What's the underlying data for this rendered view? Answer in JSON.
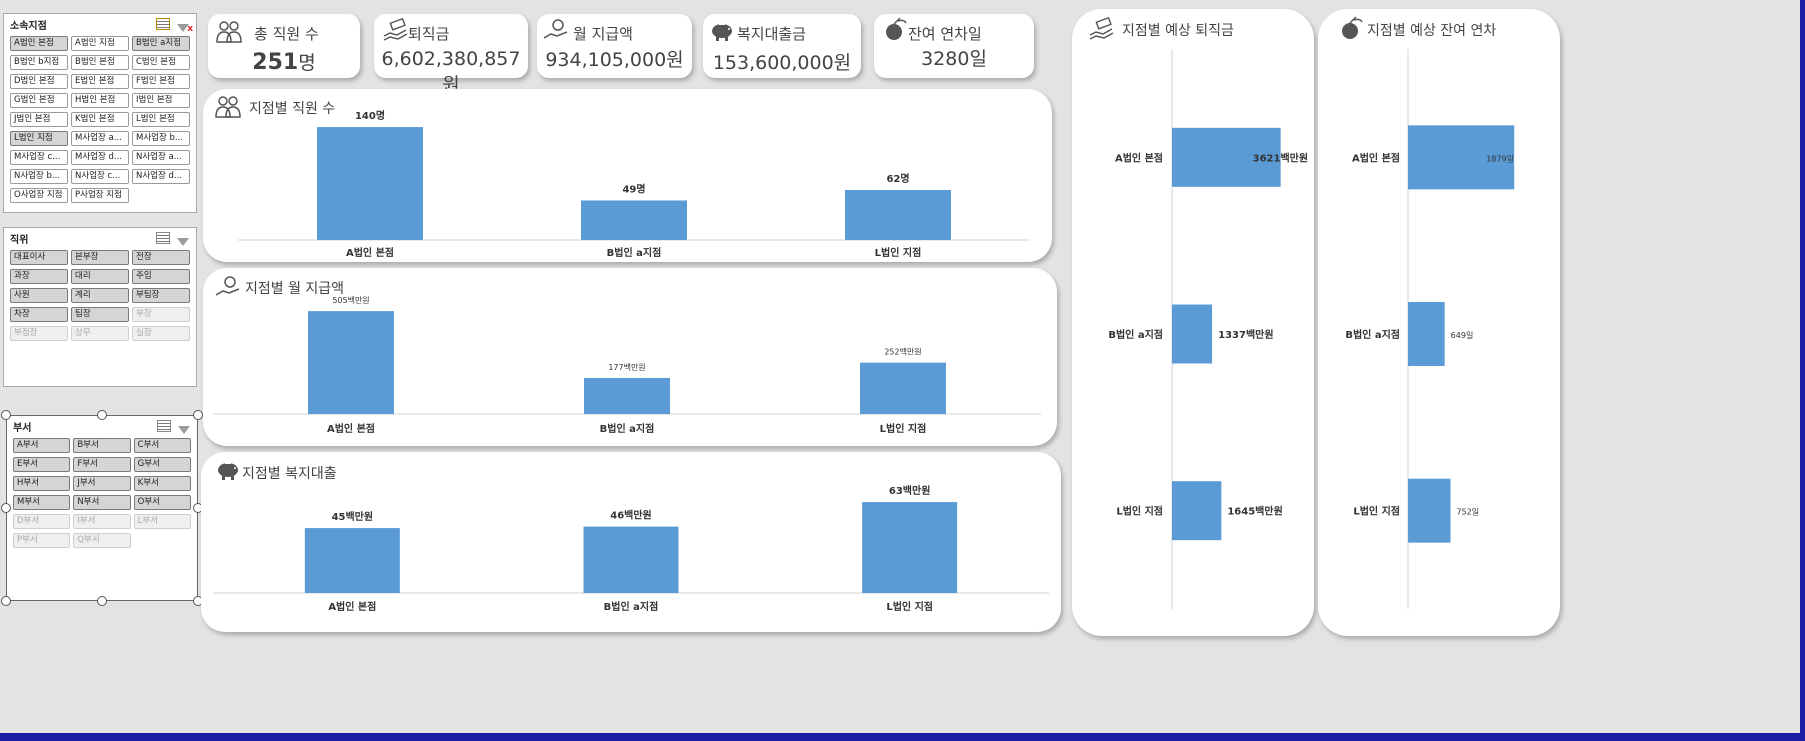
{
  "slicers": {
    "branch": {
      "title": "소속지점",
      "items": [
        {
          "label": "A법인 본점",
          "state": "sel"
        },
        {
          "label": "A법인 지점",
          "state": "normal"
        },
        {
          "label": "B법인 a지점",
          "state": "sel"
        },
        {
          "label": "B법인 b지점",
          "state": "normal"
        },
        {
          "label": "B법인 본점",
          "state": "normal"
        },
        {
          "label": "C법인 본점",
          "state": "normal"
        },
        {
          "label": "D법인 본점",
          "state": "normal"
        },
        {
          "label": "E법인 본점",
          "state": "normal"
        },
        {
          "label": "F법인 본점",
          "state": "normal"
        },
        {
          "label": "G법인 본점",
          "state": "normal"
        },
        {
          "label": "H법인 본점",
          "state": "normal"
        },
        {
          "label": "I법인 본점",
          "state": "normal"
        },
        {
          "label": "J법인 본점",
          "state": "normal"
        },
        {
          "label": "K법인 본점",
          "state": "normal"
        },
        {
          "label": "L법인 본점",
          "state": "normal"
        },
        {
          "label": "L법인 지점",
          "state": "sel"
        },
        {
          "label": "M사업장 a...",
          "state": "normal"
        },
        {
          "label": "M사업장 b...",
          "state": "normal"
        },
        {
          "label": "M사업장 c...",
          "state": "normal"
        },
        {
          "label": "M사업장 d...",
          "state": "normal"
        },
        {
          "label": "N사업장 a...",
          "state": "normal"
        },
        {
          "label": "N사업장 b...",
          "state": "normal"
        },
        {
          "label": "N사업장 c...",
          "state": "normal"
        },
        {
          "label": "N사업장 d...",
          "state": "normal"
        },
        {
          "label": "O사업장 지점",
          "state": "normal"
        },
        {
          "label": "P사업장 지점",
          "state": "normal"
        }
      ]
    },
    "position": {
      "title": "직위",
      "items": [
        {
          "label": "대표이사",
          "state": "sel"
        },
        {
          "label": "본부장",
          "state": "sel"
        },
        {
          "label": "전장",
          "state": "sel"
        },
        {
          "label": "과장",
          "state": "sel"
        },
        {
          "label": "대리",
          "state": "sel"
        },
        {
          "label": "주임",
          "state": "sel"
        },
        {
          "label": "사원",
          "state": "sel"
        },
        {
          "label": "계리",
          "state": "sel"
        },
        {
          "label": "부팀장",
          "state": "sel"
        },
        {
          "label": "차장",
          "state": "sel"
        },
        {
          "label": "팀장",
          "state": "sel"
        },
        {
          "label": "부장",
          "state": "dis"
        },
        {
          "label": "부점장",
          "state": "dis"
        },
        {
          "label": "상무",
          "state": "dis"
        },
        {
          "label": "실장",
          "state": "dis"
        }
      ]
    },
    "department": {
      "title": "부서",
      "items": [
        {
          "label": "A부서",
          "state": "sel"
        },
        {
          "label": "B부서",
          "state": "sel"
        },
        {
          "label": "C부서",
          "state": "sel"
        },
        {
          "label": "E부서",
          "state": "sel"
        },
        {
          "label": "F부서",
          "state": "sel"
        },
        {
          "label": "G부서",
          "state": "sel"
        },
        {
          "label": "H부서",
          "state": "sel"
        },
        {
          "label": "J부서",
          "state": "sel"
        },
        {
          "label": "K부서",
          "state": "sel"
        },
        {
          "label": "M부서",
          "state": "sel"
        },
        {
          "label": "N부서",
          "state": "sel"
        },
        {
          "label": "O부서",
          "state": "sel"
        },
        {
          "label": "D부서",
          "state": "dis"
        },
        {
          "label": "I부서",
          "state": "dis"
        },
        {
          "label": "L부서",
          "state": "dis"
        },
        {
          "label": "P부서",
          "state": "dis"
        },
        {
          "label": "Q부서",
          "state": "dis"
        }
      ]
    }
  },
  "kpis": {
    "employees": {
      "title": "총 직원 수",
      "number": "251",
      "unit": "명"
    },
    "severance": {
      "title": "퇴직금",
      "value": "6,602,380,857원"
    },
    "payroll": {
      "title": "월 지급액",
      "value": "934,105,000원"
    },
    "loan": {
      "title": "복지대출금",
      "value": "153,600,000원"
    },
    "leave": {
      "title": "잔여 연차일",
      "number": "3280",
      "unit": "일"
    }
  },
  "panels": {
    "employees": {
      "title": "지점별 직원 수"
    },
    "payroll": {
      "title": "지점별 월 지급액"
    },
    "loan": {
      "title": "지점별 복지대출"
    },
    "severance": {
      "title": "지점별 예상 퇴직금"
    },
    "leave": {
      "title": "지점별 예상 잔여 연차"
    }
  },
  "colors": {
    "bar": "#5b9bd5",
    "panel": "#ffffff",
    "background": "#e3e3e3",
    "text": "#444444"
  },
  "chart_data": [
    {
      "id": "employees",
      "type": "bar",
      "title": "지점별 직원 수",
      "categories": [
        "A법인 본점",
        "B법인 a지점",
        "L법인 지점"
      ],
      "values": [
        140,
        49,
        62
      ],
      "data_labels": [
        "140명",
        "49명",
        "62명"
      ],
      "ylim": [
        0,
        150
      ]
    },
    {
      "id": "payroll",
      "type": "bar",
      "title": "지점별 월 지급액",
      "categories": [
        "A법인 본점",
        "B법인 a지점",
        "L법인 지점"
      ],
      "values": [
        505,
        177,
        252
      ],
      "data_labels": [
        "505백만원",
        "177백만원",
        "252백만원"
      ],
      "ylim": [
        0,
        540
      ]
    },
    {
      "id": "loan",
      "type": "bar",
      "title": "지점별 복지대출",
      "categories": [
        "A법인 본점",
        "B법인 a지점",
        "L법인 지점"
      ],
      "values": [
        45,
        46,
        63
      ],
      "data_labels": [
        "45백만원",
        "46백만원",
        "63백만원"
      ],
      "ylim": [
        0,
        70
      ]
    },
    {
      "id": "severance",
      "type": "bar",
      "orientation": "horizontal",
      "title": "지점별 예상 퇴직금",
      "categories": [
        "A법인 본점",
        "B법인 a지점",
        "L법인 지점"
      ],
      "values": [
        3621,
        1337,
        1645
      ],
      "data_labels": [
        "3621백만원",
        "1337백만원",
        "1645백만원"
      ],
      "xlim": [
        0,
        4500
      ]
    },
    {
      "id": "leave",
      "type": "bar",
      "orientation": "horizontal",
      "title": "지점별 예상 잔여 연차",
      "categories": [
        "A법인 본점",
        "B법인 a지점",
        "L법인 지점"
      ],
      "values": [
        1879,
        649,
        752
      ],
      "data_labels": [
        "1879일",
        "649일",
        "752일"
      ],
      "xlim": [
        0,
        2300
      ]
    }
  ]
}
